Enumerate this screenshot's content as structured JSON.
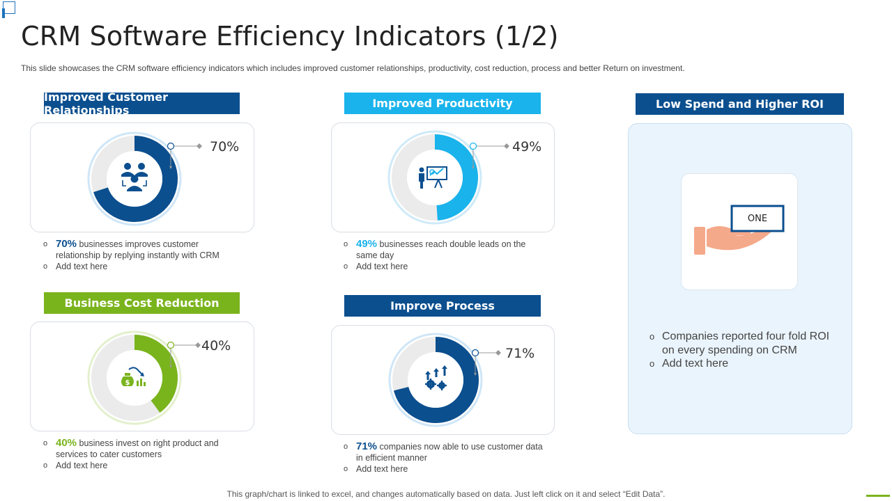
{
  "title": "CRM Software Efficiency Indicators (1/2)",
  "subtitle": "This slide showcases the CRM software efficiency indicators which includes improved  customer relationships, productivity,  cost reduction, process and better Return on investment.",
  "colors": {
    "navy": "#0b4f8f",
    "sky": "#1ab3ec",
    "green": "#7ab41d",
    "ring_track": "#ebebeb"
  },
  "cards": [
    {
      "id": "relationships",
      "header": "Improved Customer Relationships",
      "percent_label": "70%",
      "value": 70,
      "color": "#0b4f8f",
      "halo": "#cfe6f7",
      "icon": "team-icon",
      "bullets": [
        {
          "emphasis": "70%",
          "text": " businesses improves  customer relationship by replying instantly with CRM"
        },
        {
          "emphasis": "",
          "text": "Add text here"
        }
      ]
    },
    {
      "id": "productivity",
      "header": "Improved Productivity",
      "percent_label": "49%",
      "value": 49,
      "color": "#1ab3ec",
      "halo": "#cfeaf8",
      "icon": "presentation-icon",
      "bullets": [
        {
          "emphasis": "49%",
          "text": " businesses reach double leads on the same day"
        },
        {
          "emphasis": "",
          "text": "Add text here"
        }
      ]
    },
    {
      "id": "cost",
      "header": "Business  Cost  Reduction",
      "percent_label": "40%",
      "value": 40,
      "color": "#7ab41d",
      "halo": "#e3f0cd",
      "icon": "money-bag-icon",
      "bullets": [
        {
          "emphasis": "40%",
          "text": " business invest  on right product and services to cater customers"
        },
        {
          "emphasis": "",
          "text": "Add text here"
        }
      ]
    },
    {
      "id": "process",
      "header": "Improve Process",
      "percent_label": "71%",
      "value": 71,
      "color": "#0b4f8f",
      "halo": "#cfe6f7",
      "icon": "gears-icon",
      "bullets": [
        {
          "emphasis": "71%",
          "text": " companies now able to use customer data in efficient  manner"
        },
        {
          "emphasis": "",
          "text": "Add text here"
        }
      ]
    }
  ],
  "roi": {
    "header": "Low Spend and Higher ROI",
    "badge": "ONE",
    "bullets": [
      "Companies reported four fold ROI on every spending on CRM",
      "Add text here"
    ]
  },
  "footer": "This graph/chart is linked to excel,  and changes automatically based on data. Just left click on it and select “Edit Data”."
}
